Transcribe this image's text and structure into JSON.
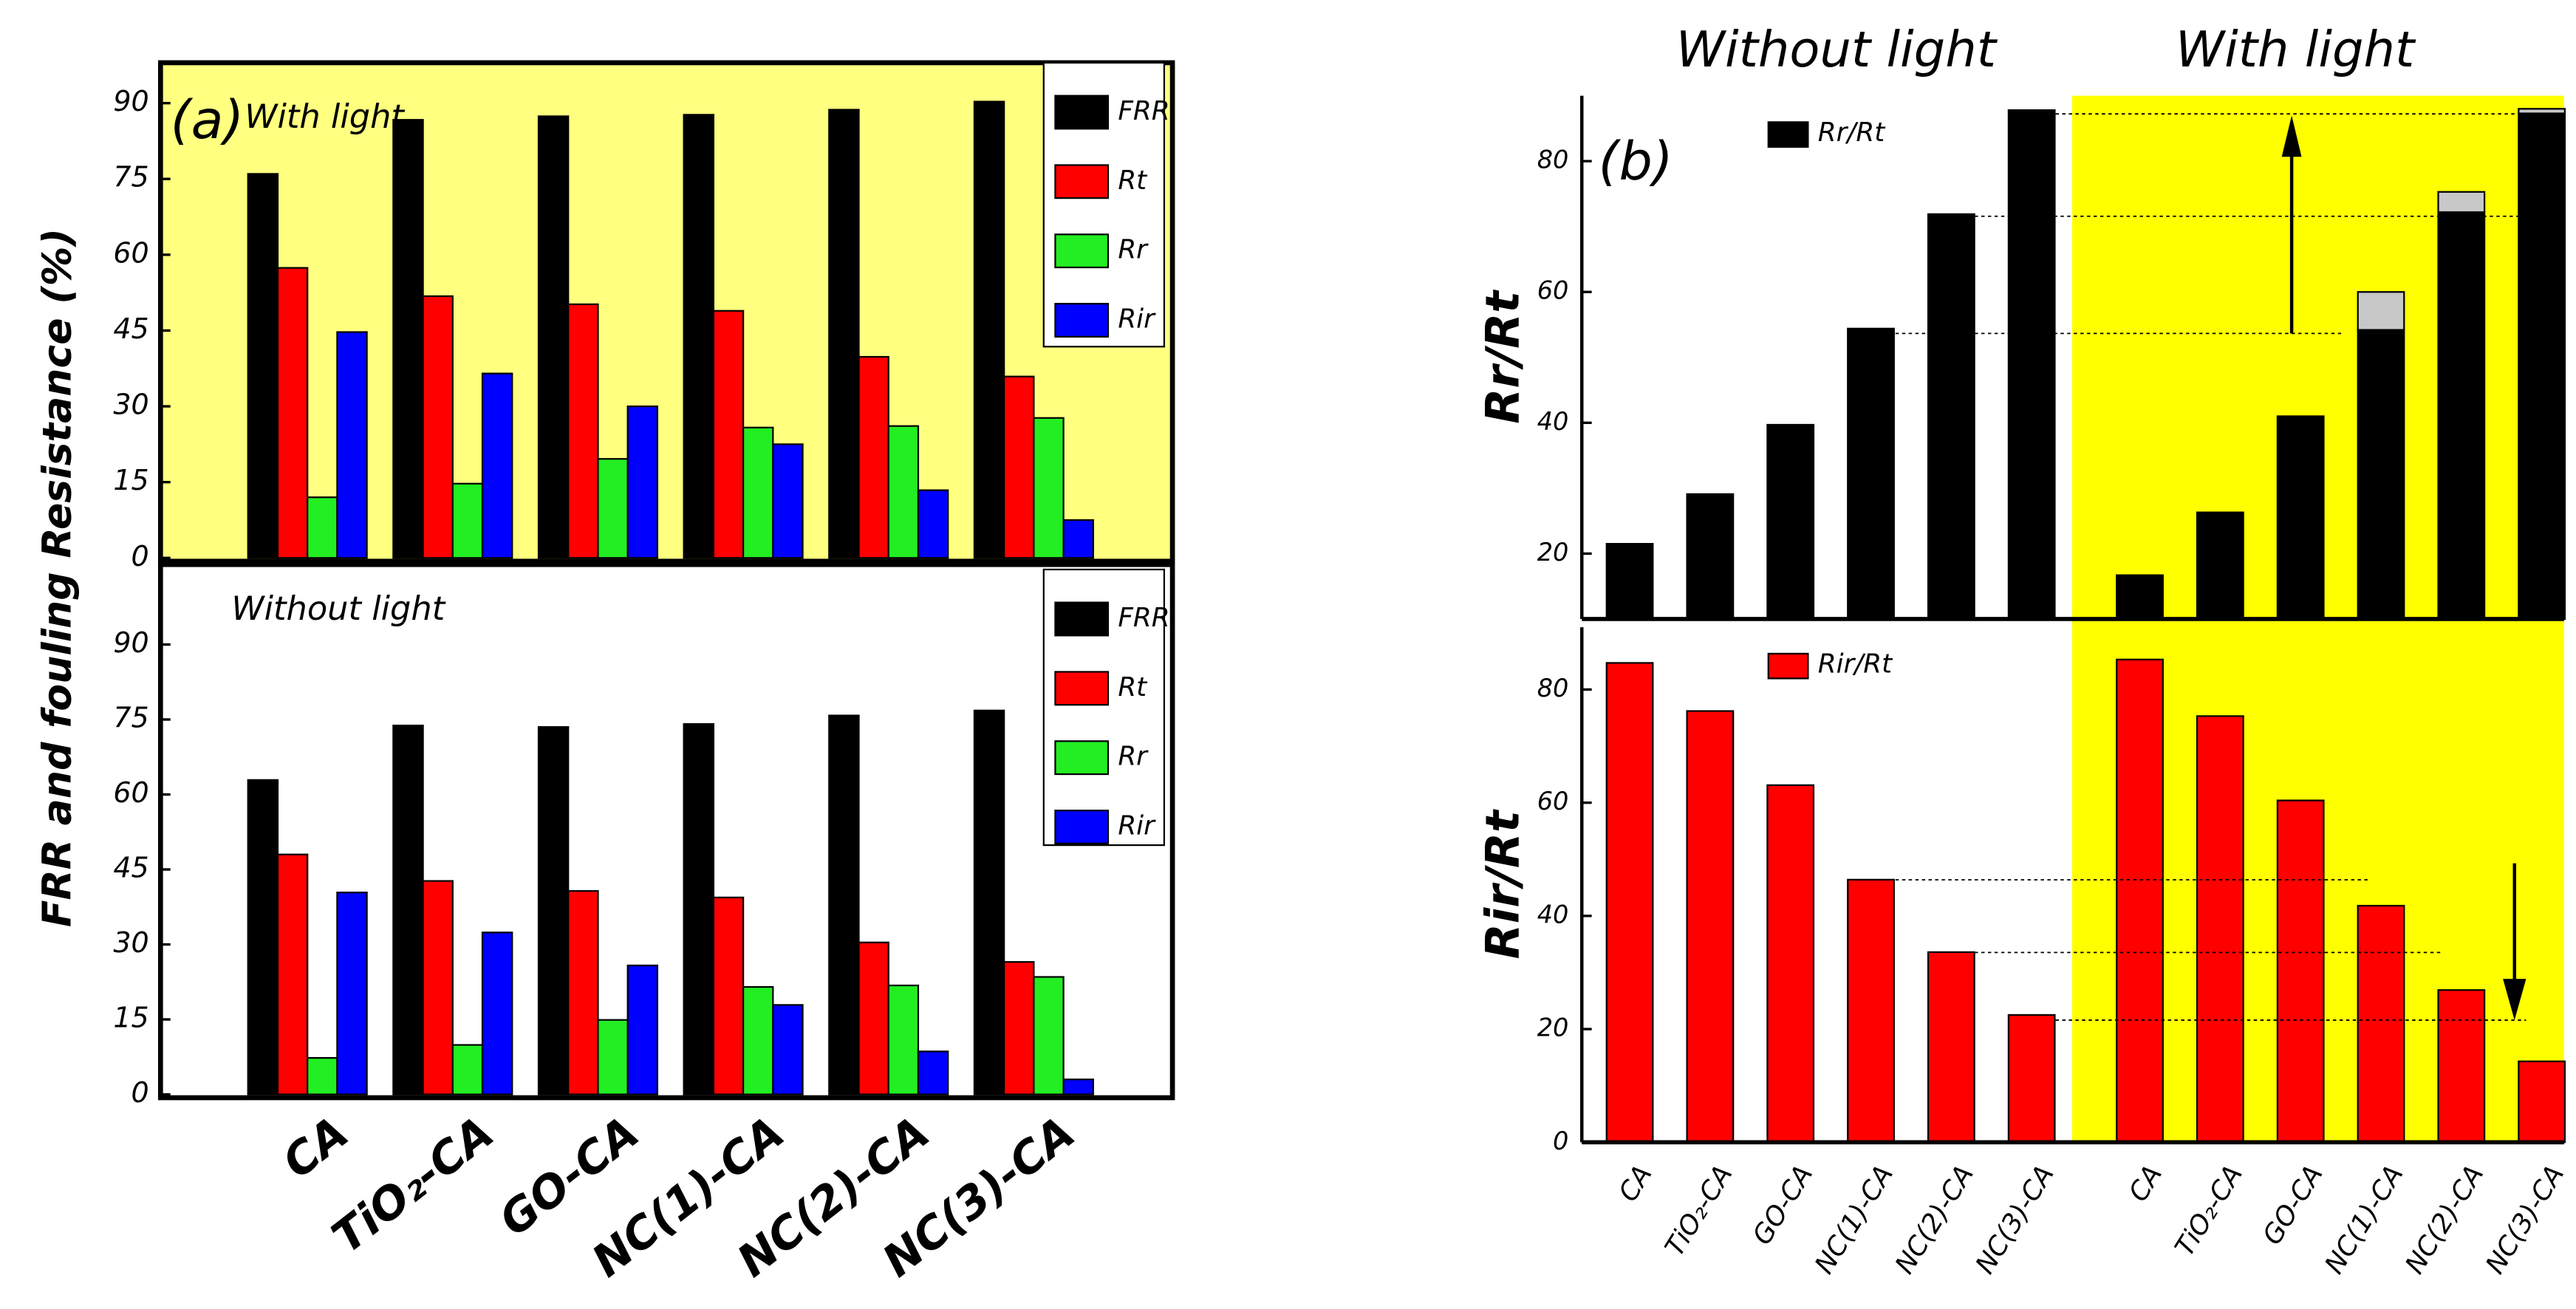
{
  "chart_data": [
    {
      "type": "bar",
      "label": "(a)",
      "ylabel": "FRR and fouling Resistance (%)",
      "categories": [
        "CA",
        "TiO₂-CA",
        "GO-CA",
        "NC(1)-CA",
        "NC(2)-CA",
        "NC(3)-CA"
      ],
      "subplots": [
        {
          "title": "With light",
          "background": "#ffff80",
          "ylim": [
            0,
            98
          ],
          "yticks": [
            0,
            15,
            30,
            45,
            60,
            75,
            90
          ],
          "series": [
            {
              "name": "FRR",
              "color": "#000000",
              "values": [
                76,
                86.7,
                87.4,
                87.7,
                88.7,
                90.3
              ]
            },
            {
              "name": "Rt",
              "color": "#ff0000",
              "values": [
                57.4,
                51.8,
                50.2,
                48.9,
                39.8,
                35.9
              ]
            },
            {
              "name": "Rr",
              "color": "#22ee22",
              "values": [
                12,
                14.7,
                19.6,
                25.8,
                26.1,
                27.7
              ]
            },
            {
              "name": "Rir",
              "color": "#0000ff",
              "values": [
                44.7,
                36.5,
                30,
                22.5,
                13.4,
                7.5
              ]
            }
          ]
        },
        {
          "title": "Without light",
          "background": "#ffffff",
          "ylim": [
            0,
            106
          ],
          "yticks": [
            0,
            15,
            30,
            45,
            60,
            75,
            90
          ],
          "series": [
            {
              "name": "FRR",
              "color": "#000000",
              "values": [
                62.9,
                73.8,
                73.5,
                74.1,
                75.8,
                76.8
              ]
            },
            {
              "name": "Rt",
              "color": "#ff0000",
              "values": [
                48,
                42.7,
                40.7,
                39.4,
                30.4,
                26.5
              ]
            },
            {
              "name": "Rr",
              "color": "#22ee22",
              "values": [
                7.3,
                9.9,
                14.9,
                21.5,
                21.8,
                23.5
              ]
            },
            {
              "name": "Rir",
              "color": "#0000ff",
              "values": [
                40.4,
                32.4,
                25.8,
                17.9,
                8.6,
                3
              ]
            }
          ]
        }
      ]
    },
    {
      "type": "bar",
      "label": "(b)",
      "group_labels": [
        "Without light",
        "With light"
      ],
      "categories": [
        "CA",
        "TiO₂-CA",
        "GO-CA",
        "NC(1)-CA",
        "NC(2)-CA",
        "NC(3)-CA",
        "CA",
        "TiO₂-CA",
        "GO-CA",
        "NC(1)-CA",
        "NC(2)-CA",
        "NC(3)-CA"
      ],
      "subplots": [
        {
          "ylabel": "Rr/Rt",
          "ylim": [
            10,
            90
          ],
          "yticks": [
            20,
            40,
            60,
            80
          ],
          "series": [
            {
              "name": "Rr/Rt",
              "color": "#000000",
              "values": [
                21.5,
                29.1,
                39.7,
                54.4,
                71.9,
                87.8,
                16.7,
                26.3,
                41,
                54.2,
                72.2,
                87.3
              ]
            },
            {
              "color": "#c8c8c8",
              "stacked": true,
              "values": [
                null,
                null,
                null,
                null,
                null,
                null,
                null,
                null,
                null,
                5.8,
                3.1,
                0.7
              ]
            }
          ]
        },
        {
          "ylabel": "Rir/Rt",
          "ylim": [
            0,
            91
          ],
          "yticks": [
            0,
            20,
            40,
            60,
            80
          ],
          "series": [
            {
              "name": "Rir/Rt",
              "color": "#ff0000",
              "values": [
                84.7,
                76.2,
                63.1,
                46.4,
                33.6,
                22.5,
                85.3,
                75.3,
                60.4,
                41.8,
                26.9,
                14.3
              ]
            }
          ]
        }
      ]
    }
  ]
}
